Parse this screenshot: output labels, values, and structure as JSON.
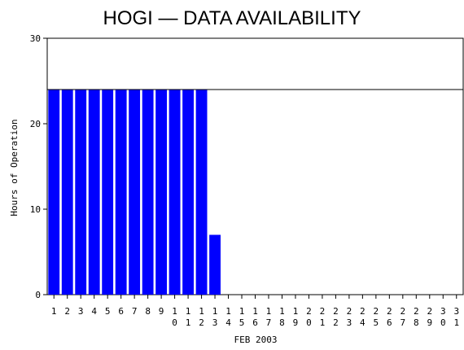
{
  "chart_data": {
    "type": "bar",
    "title": "HOGI — DATA AVAILABILITY",
    "x_label": "FEB 2003",
    "y_label": "Hours of Operation",
    "categories": [
      "1",
      "2",
      "3",
      "4",
      "5",
      "6",
      "7",
      "8",
      "9",
      "10",
      "11",
      "12",
      "13",
      "14",
      "15",
      "16",
      "17",
      "18",
      "19",
      "20",
      "21",
      "22",
      "23",
      "24",
      "25",
      "26",
      "27",
      "28",
      "29",
      "30",
      "31"
    ],
    "values": [
      24,
      24,
      24,
      24,
      24,
      24,
      24,
      24,
      24,
      24,
      24,
      24,
      7,
      0,
      0,
      0,
      0,
      0,
      0,
      0,
      0,
      0,
      0,
      0,
      0,
      0,
      0,
      0,
      0,
      0,
      0
    ],
    "color": "#0000ff",
    "reference_line": 24,
    "ylim": [
      0,
      30
    ],
    "yticks": [
      0,
      10,
      20,
      30
    ],
    "grid": false
  }
}
